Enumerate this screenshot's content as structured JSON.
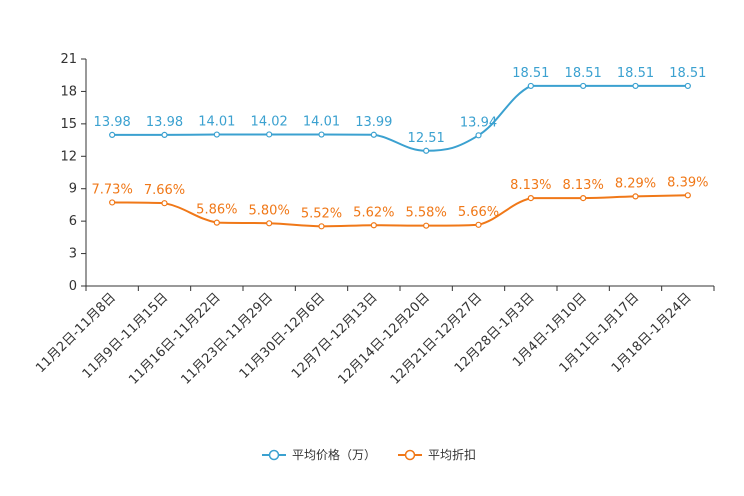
{
  "chart_data": {
    "type": "line",
    "categories": [
      "11月2日-11月8日",
      "11月9日-11月15日",
      "11月16日-11月22日",
      "11月23日-11月29日",
      "11月30日-12月6日",
      "12月7日-12月13日",
      "12月14日-12月20日",
      "12月21日-12月27日",
      "12月28日-1月3日",
      "1月4日-1月10日",
      "1月11日-1月17日",
      "1月18日-1月24日"
    ],
    "ylim": [
      0,
      21
    ],
    "yticks": [
      "0",
      "3",
      "6",
      "9",
      "12",
      "15",
      "18",
      "21"
    ],
    "series": [
      {
        "name": "平均价格（万）",
        "color": "#3ba1d0",
        "values": [
          13.98,
          13.98,
          14.01,
          14.02,
          14.01,
          13.99,
          12.51,
          13.94,
          18.51,
          18.51,
          18.51,
          18.51
        ],
        "labels": [
          "13.98",
          "13.98",
          "14.01",
          "14.02",
          "14.01",
          "13.99",
          "12.51",
          "13.94",
          "18.51",
          "18.51",
          "18.51",
          "18.51"
        ]
      },
      {
        "name": "平均折扣",
        "color": "#f07818",
        "values": [
          7.73,
          7.66,
          5.86,
          5.8,
          5.52,
          5.62,
          5.58,
          5.66,
          8.13,
          8.13,
          8.29,
          8.39
        ],
        "labels": [
          "7.73%",
          "7.66%",
          "5.86%",
          "5.80%",
          "5.52%",
          "5.62%",
          "5.58%",
          "5.66%",
          "8.13%",
          "8.13%",
          "8.29%",
          "8.39%"
        ]
      }
    ],
    "legend_position": "bottom-center"
  }
}
